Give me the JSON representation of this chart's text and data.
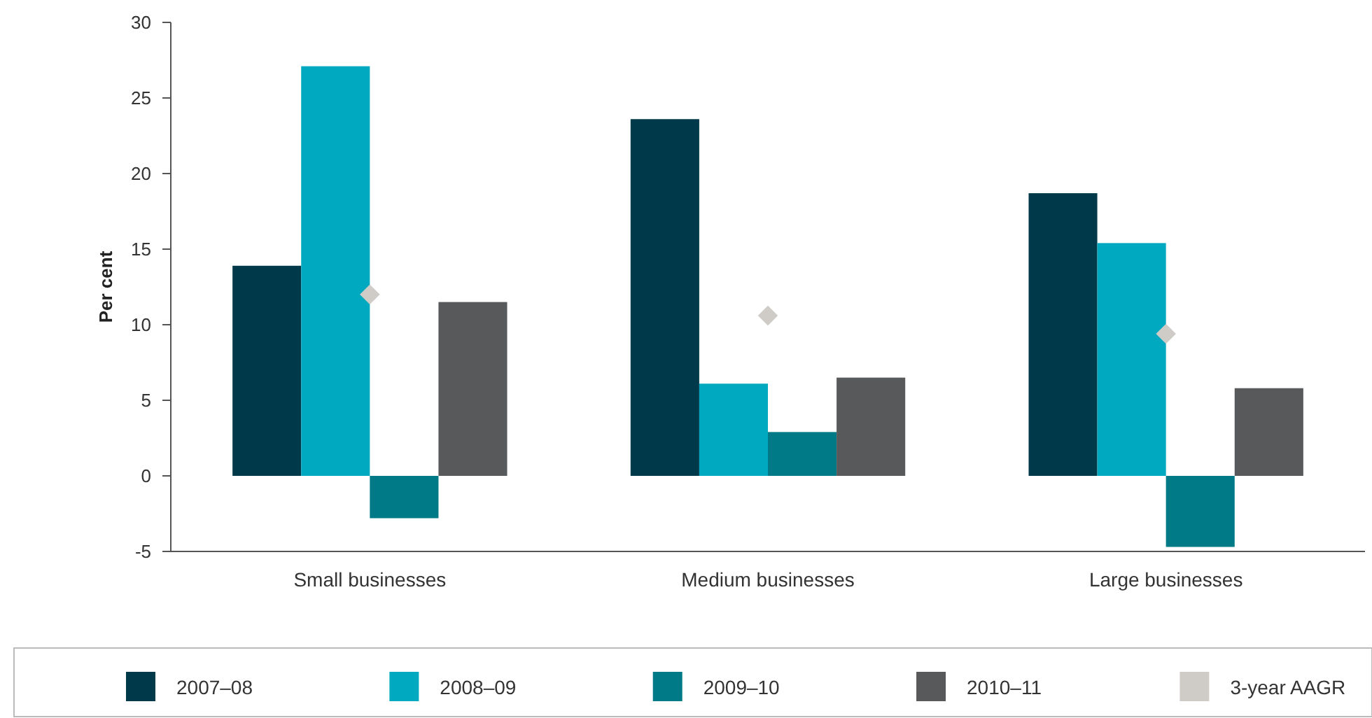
{
  "chart_data": {
    "type": "bar",
    "ylabel": "Per cent",
    "categories": [
      "Small businesses",
      "Medium businesses",
      "Large businesses"
    ],
    "series": [
      {
        "name": "2007–08",
        "color": "#003a4a",
        "values": [
          13.9,
          23.6,
          18.7
        ]
      },
      {
        "name": "2008–09",
        "color": "#00a9bf",
        "values": [
          27.1,
          6.1,
          15.4
        ]
      },
      {
        "name": "2009–10",
        "color": "#007a87",
        "values": [
          -2.8,
          2.9,
          -4.7
        ]
      },
      {
        "name": "2010–11",
        "color": "#58595b",
        "values": [
          11.5,
          6.5,
          5.8
        ]
      },
      {
        "name": "3-year AAGR",
        "type": "scatter",
        "marker": "diamond",
        "color": "#cfccc8",
        "x": [
          "Small businesses",
          "Medium businesses",
          "Large businesses"
        ],
        "values": [
          12.0,
          10.6,
          9.4
        ]
      }
    ],
    "ylim": [
      -5,
      30
    ],
    "yticks": [
      -5,
      0,
      5,
      10,
      15,
      20,
      25,
      30
    ],
    "grid": false,
    "legend": "bottom"
  }
}
